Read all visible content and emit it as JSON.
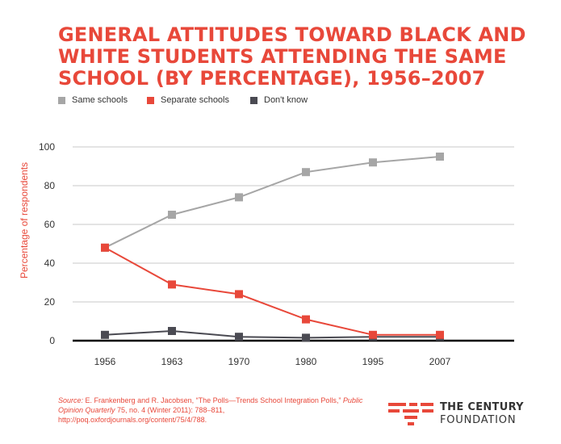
{
  "title_lines": [
    "GENERAL ATTITUDES TOWARD BLACK AND",
    "WHITE STUDENTS ATTENDING THE SAME",
    "SCHOOL (BY PERCENTAGE), 1956–2007"
  ],
  "source": {
    "label": "Source:",
    "text1": " E. Frankenberg and R. Jacobsen, “The Polls—Trends School Integration Polls,” ",
    "journal": "Public Opinion Quarterly",
    "text2": " 75, no. 4 (Winter 2011): 788–811, http://poq.oxfordjournals.org/content/75/4/788."
  },
  "logo": {
    "line1": "THE CENTURY",
    "line2": "FOUNDATION",
    "color": "#e8483a"
  },
  "chart_data": {
    "type": "line",
    "title": "GENERAL ATTITUDES TOWARD BLACK AND WHITE STUDENTS ATTENDING THE SAME SCHOOL (BY PERCENTAGE), 1956–2007",
    "xlabel": "",
    "ylabel": "Percentage of respondents",
    "categories": [
      "1956",
      "1963",
      "1970",
      "1980",
      "1995",
      "2007"
    ],
    "yticks": [
      0,
      20,
      40,
      60,
      80,
      100
    ],
    "ylim": [
      0,
      100
    ],
    "grid": true,
    "legend_position": "top-left",
    "series": [
      {
        "name": "Same schools",
        "color": "#a6a6a6",
        "values": [
          48,
          65,
          74,
          87,
          92,
          95
        ]
      },
      {
        "name": "Separate schools",
        "color": "#e8483a",
        "values": [
          48,
          29,
          24,
          11,
          3,
          3
        ]
      },
      {
        "name": "Don't know",
        "color": "#4a4a52",
        "values": [
          3,
          5,
          2,
          1.5,
          2,
          2
        ]
      }
    ]
  }
}
